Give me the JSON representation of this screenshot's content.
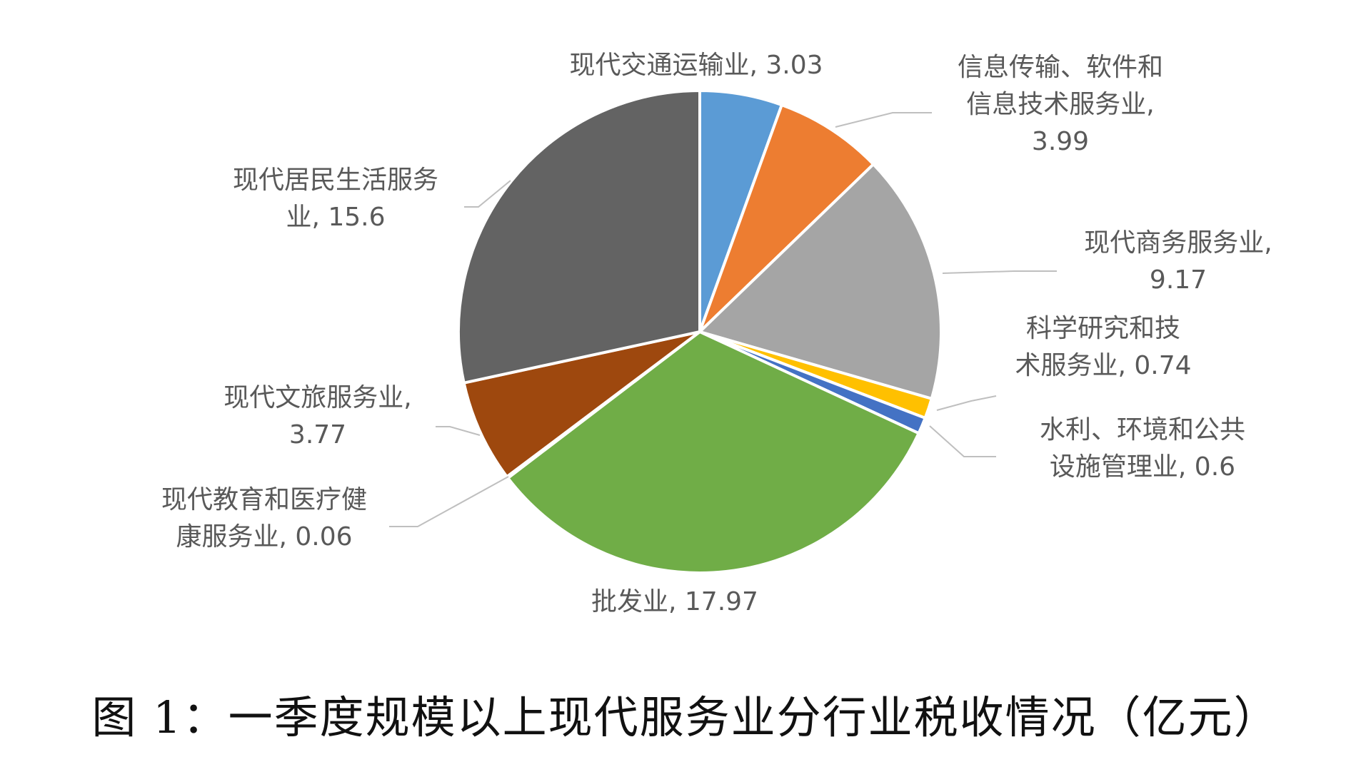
{
  "caption": "图 1：一季度规模以上现代服务业分行业税收情况（亿元）",
  "chart_data": {
    "type": "pie",
    "title": "图 1：一季度规模以上现代服务业分行业税收情况（亿元）",
    "unit": "亿元",
    "start_angle": "12 o'clock",
    "direction": "clockwise",
    "slices": [
      {
        "name": "现代交通运输业",
        "value": 3.03,
        "color": "#5B9BD5",
        "label_lines": [
          "现代交通运输业, 3.03"
        ]
      },
      {
        "name": "信息传输、软件和信息技术服务业",
        "value": 3.99,
        "color": "#ED7D31",
        "label_lines": [
          "信息传输、软件和",
          "信息技术服务业,",
          "3.99"
        ]
      },
      {
        "name": "现代商务服务业",
        "value": 9.17,
        "color": "#A5A5A5",
        "label_lines": [
          "现代商务服务业,",
          "9.17"
        ]
      },
      {
        "name": "科学研究和技术服务业",
        "value": 0.74,
        "color": "#FFC000",
        "label_lines": [
          "科学研究和技",
          "术服务业, 0.74"
        ]
      },
      {
        "name": "水利、环境和公共设施管理业",
        "value": 0.6,
        "color": "#4472C4",
        "label_lines": [
          "水利、环境和公共",
          "设施管理业, 0.6"
        ]
      },
      {
        "name": "批发业",
        "value": 17.97,
        "color": "#70AD47",
        "label_lines": [
          "批发业, 17.97"
        ]
      },
      {
        "name": "现代教育和医疗健康服务业",
        "value": 0.06,
        "color": "#264478",
        "label_lines": [
          "现代教育和医疗健",
          "康服务业, 0.06"
        ]
      },
      {
        "name": "现代文旅服务业",
        "value": 3.77,
        "color": "#9E480E",
        "label_lines": [
          "现代文旅服务业,",
          "3.77"
        ]
      },
      {
        "name": "现代居民生活服务业",
        "value": 15.6,
        "color": "#636363",
        "label_lines": [
          "现代居民生活服务",
          "业, 15.6"
        ]
      }
    ]
  }
}
